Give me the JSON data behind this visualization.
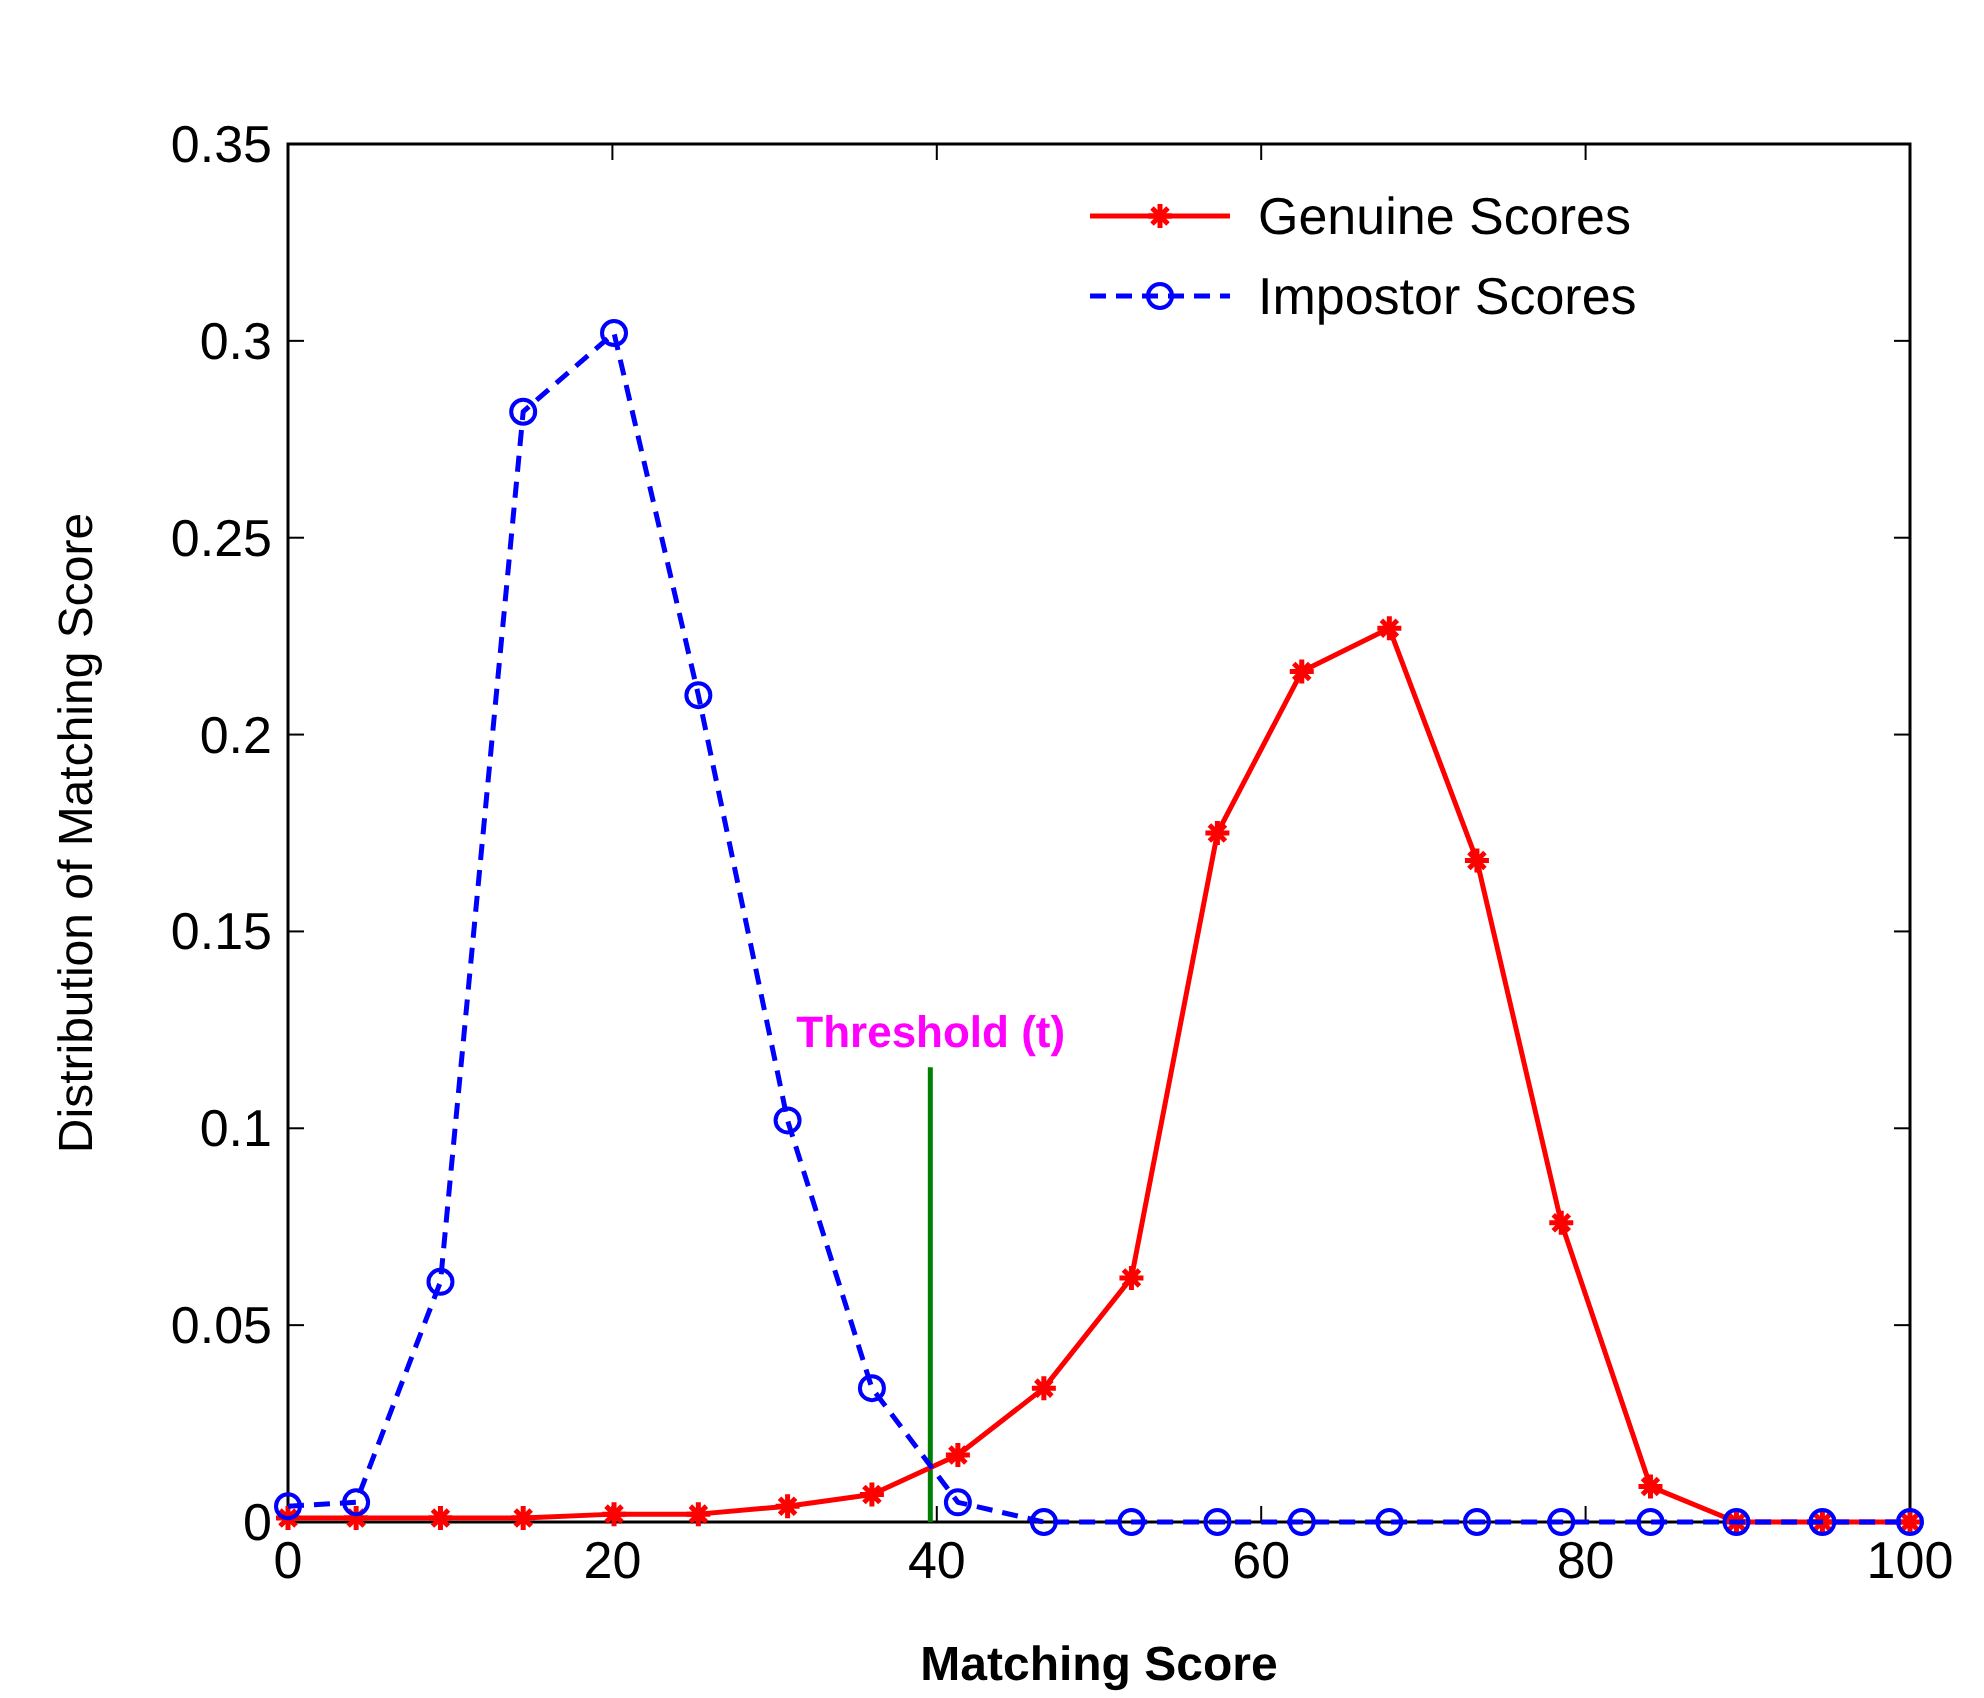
{
  "chart_data": {
    "type": "line",
    "xlabel": "Matching Score",
    "ylabel": "Distribution of Matching Score",
    "xlim": [
      0,
      100
    ],
    "xticks": [
      0,
      20,
      40,
      60,
      80,
      100
    ],
    "ylim": [
      0,
      0.35
    ],
    "yticks": [
      0,
      0.05,
      0.1,
      0.15,
      0.2,
      0.25,
      0.3,
      0.35
    ],
    "legend": "top right",
    "grid": false,
    "series": [
      {
        "name": "Genuine Scores",
        "color": "#ff0000",
        "marker": "cross",
        "line_style": "solid",
        "x": [
          0,
          4.2,
          9.4,
          14.5,
          20.1,
          25.3,
          30.8,
          36,
          41.3,
          46.6,
          52,
          57.3,
          62.5,
          67.9,
          73.3,
          78.5,
          84,
          89.3,
          94.6,
          100
        ],
        "values": [
          0.001,
          0.001,
          0.001,
          0.001,
          0.002,
          0.002,
          0.004,
          0.007,
          0.017,
          0.034,
          0.062,
          0.175,
          0.216,
          0.227,
          0.168,
          0.076,
          0.009,
          0,
          0,
          0
        ]
      },
      {
        "name": "Impostor Scores",
        "color": "#0000ff",
        "marker": "circle",
        "line_style": "dashed",
        "x": [
          0,
          4.2,
          9.4,
          14.5,
          20.1,
          25.3,
          30.8,
          36,
          41.3,
          46.6,
          52,
          57.3,
          62.5,
          67.9,
          73.3,
          78.5,
          84,
          89.3,
          94.6,
          100
        ],
        "values": [
          0.004,
          0.005,
          0.061,
          0.282,
          0.302,
          0.21,
          0.102,
          0.034,
          0.005,
          0,
          0,
          0,
          0,
          0,
          0,
          0,
          0,
          0,
          0,
          0
        ]
      }
    ],
    "ref_lines": [
      {
        "axis": "x",
        "value": 39.6,
        "label": "Threshold (t)",
        "color": "#008000",
        "line_style": "solid"
      }
    ]
  }
}
